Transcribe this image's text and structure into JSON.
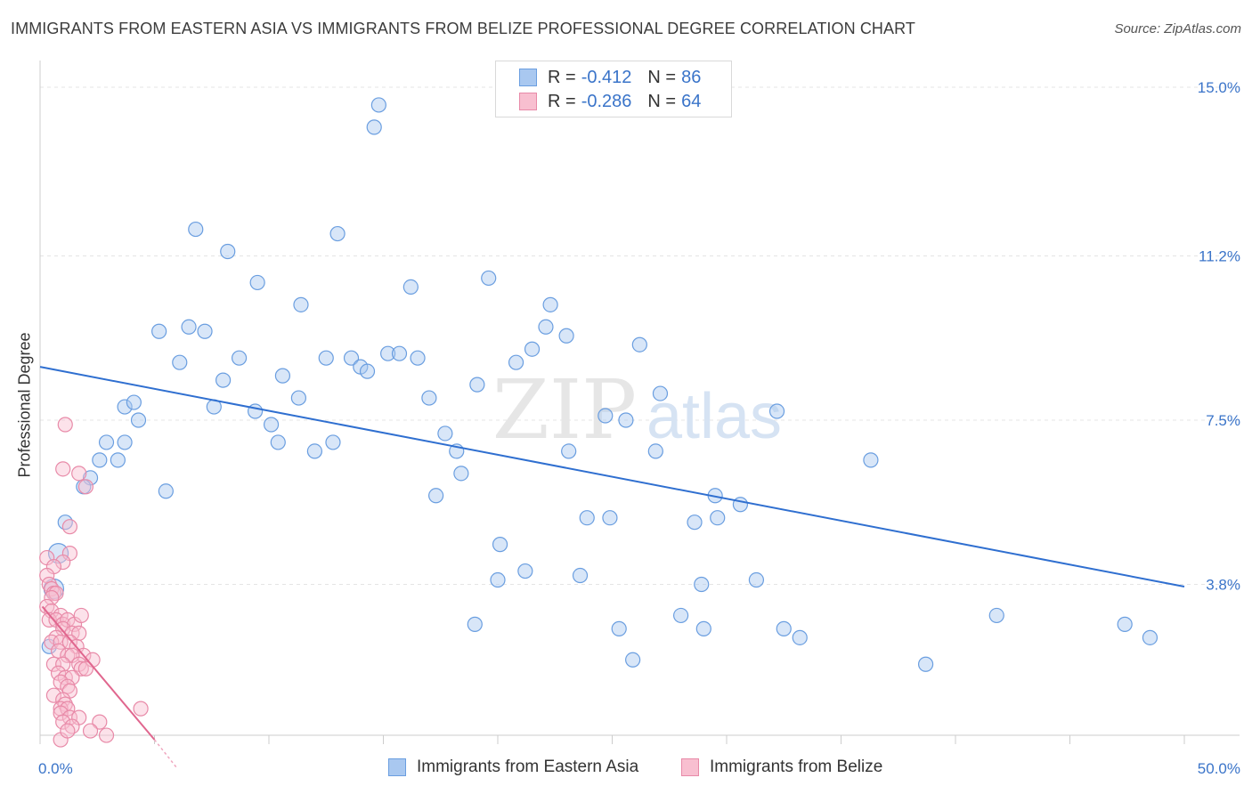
{
  "title": "IMMIGRANTS FROM EASTERN ASIA VS IMMIGRANTS FROM BELIZE PROFESSIONAL DEGREE CORRELATION CHART",
  "source": "Source: ZipAtlas.com",
  "watermark": {
    "zip": "ZIP",
    "atlas": "atlas"
  },
  "legend_top": {
    "rows": [
      {
        "r_label": "R =",
        "r_value": "-0.412",
        "n_label": "N =",
        "n_value": "86",
        "color": "#a9c8f0",
        "border": "#6a9ee0"
      },
      {
        "r_label": "R =",
        "r_value": "-0.286",
        "n_label": "N =",
        "n_value": "64",
        "color": "#f8bfd0",
        "border": "#e88aa8"
      }
    ]
  },
  "legend_bottom": {
    "items": [
      {
        "label": "Immigrants from Eastern Asia",
        "color": "#a9c8f0",
        "border": "#6a9ee0"
      },
      {
        "label": "Immigrants from Belize",
        "color": "#f8bfd0",
        "border": "#e88aa8"
      }
    ]
  },
  "chart_data": {
    "type": "scatter",
    "title": "IMMIGRANTS FROM EASTERN ASIA VS IMMIGRANTS FROM BELIZE PROFESSIONAL DEGREE CORRELATION CHART",
    "xlabel": "",
    "ylabel": "Professional Degree",
    "xlim": [
      0,
      50
    ],
    "ylim": [
      0,
      15
    ],
    "x_tick_labels": [
      "0.0%",
      "50.0%"
    ],
    "y_ticks": [
      3.8,
      7.5,
      11.2,
      15.0
    ],
    "y_tick_labels": [
      "3.8%",
      "7.5%",
      "11.2%",
      "15.0%"
    ],
    "grid": true,
    "legend_position": "top-center",
    "series": [
      {
        "name": "Immigrants from Eastern Asia",
        "color": "#6a9ee0",
        "fill": "#a9c8f0",
        "trend": {
          "x": [
            0,
            50
          ],
          "y": [
            8.7,
            3.75
          ],
          "color": "#2f6fd0"
        },
        "points": [
          [
            14.8,
            14.6
          ],
          [
            14.6,
            14.1
          ],
          [
            6.8,
            11.8
          ],
          [
            8.2,
            11.3
          ],
          [
            13.0,
            11.7
          ],
          [
            9.5,
            10.6
          ],
          [
            11.4,
            10.1
          ],
          [
            16.2,
            10.5
          ],
          [
            19.6,
            10.7
          ],
          [
            22.3,
            10.1
          ],
          [
            5.2,
            9.5
          ],
          [
            6.5,
            9.6
          ],
          [
            7.2,
            9.5
          ],
          [
            22.1,
            9.6
          ],
          [
            23.0,
            9.4
          ],
          [
            8.7,
            8.9
          ],
          [
            6.1,
            8.8
          ],
          [
            12.5,
            8.9
          ],
          [
            13.6,
            8.9
          ],
          [
            15.2,
            9.0
          ],
          [
            15.7,
            9.0
          ],
          [
            16.5,
            8.9
          ],
          [
            14.0,
            8.7
          ],
          [
            14.3,
            8.6
          ],
          [
            20.8,
            8.8
          ],
          [
            21.5,
            9.1
          ],
          [
            26.2,
            9.2
          ],
          [
            10.6,
            8.5
          ],
          [
            8.0,
            8.4
          ],
          [
            19.1,
            8.3
          ],
          [
            27.1,
            8.1
          ],
          [
            3.7,
            7.8
          ],
          [
            4.1,
            7.9
          ],
          [
            7.6,
            7.8
          ],
          [
            9.4,
            7.7
          ],
          [
            11.3,
            8.0
          ],
          [
            17.0,
            8.0
          ],
          [
            4.3,
            7.5
          ],
          [
            10.1,
            7.4
          ],
          [
            2.9,
            7.0
          ],
          [
            3.7,
            7.0
          ],
          [
            10.4,
            7.0
          ],
          [
            12.8,
            7.0
          ],
          [
            12.0,
            6.8
          ],
          [
            17.7,
            7.2
          ],
          [
            18.2,
            6.8
          ],
          [
            23.1,
            6.8
          ],
          [
            24.7,
            7.6
          ],
          [
            25.6,
            7.5
          ],
          [
            26.9,
            6.8
          ],
          [
            32.2,
            7.7
          ],
          [
            36.3,
            6.6
          ],
          [
            2.6,
            6.6
          ],
          [
            3.4,
            6.6
          ],
          [
            2.2,
            6.2
          ],
          [
            18.4,
            6.3
          ],
          [
            1.9,
            6.0
          ],
          [
            5.5,
            5.9
          ],
          [
            17.3,
            5.8
          ],
          [
            29.5,
            5.8
          ],
          [
            30.6,
            5.6
          ],
          [
            23.9,
            5.3
          ],
          [
            24.9,
            5.3
          ],
          [
            28.6,
            5.2
          ],
          [
            29.6,
            5.3
          ],
          [
            1.1,
            5.2
          ],
          [
            20.1,
            4.7
          ],
          [
            0.8,
            4.5
          ],
          [
            21.2,
            4.1
          ],
          [
            20.0,
            3.9
          ],
          [
            23.6,
            4.0
          ],
          [
            28.9,
            3.8
          ],
          [
            31.3,
            3.9
          ],
          [
            0.6,
            3.7
          ],
          [
            28.0,
            3.1
          ],
          [
            41.8,
            3.1
          ],
          [
            19.0,
            2.9
          ],
          [
            25.3,
            2.8
          ],
          [
            29.0,
            2.8
          ],
          [
            32.5,
            2.8
          ],
          [
            33.2,
            2.6
          ],
          [
            47.4,
            2.9
          ],
          [
            48.5,
            2.6
          ],
          [
            0.4,
            2.4
          ],
          [
            25.9,
            2.1
          ],
          [
            38.7,
            2.0
          ]
        ]
      },
      {
        "name": "Immigrants from Belize",
        "color": "#e88aa8",
        "fill": "#f8bfd0",
        "trend": {
          "x": [
            0.1,
            5.0
          ],
          "y": [
            3.3,
            0.3
          ],
          "color": "#e0668e"
        },
        "trend_dashed": {
          "x": [
            5.0,
            6.0
          ],
          "y": [
            0.3,
            -0.35
          ]
        },
        "points": [
          [
            1.1,
            7.4
          ],
          [
            1.0,
            6.4
          ],
          [
            1.7,
            6.3
          ],
          [
            2.0,
            6.0
          ],
          [
            1.3,
            5.1
          ],
          [
            1.3,
            4.5
          ],
          [
            0.3,
            4.4
          ],
          [
            1.0,
            4.3
          ],
          [
            0.6,
            4.2
          ],
          [
            0.3,
            4.0
          ],
          [
            0.4,
            3.8
          ],
          [
            0.5,
            3.7
          ],
          [
            0.6,
            3.6
          ],
          [
            0.7,
            3.6
          ],
          [
            0.5,
            3.5
          ],
          [
            0.3,
            3.3
          ],
          [
            0.5,
            3.2
          ],
          [
            0.9,
            3.1
          ],
          [
            0.4,
            3.0
          ],
          [
            0.7,
            3.0
          ],
          [
            1.0,
            2.9
          ],
          [
            1.2,
            3.0
          ],
          [
            1.5,
            2.9
          ],
          [
            1.8,
            3.1
          ],
          [
            1.0,
            2.8
          ],
          [
            0.7,
            2.6
          ],
          [
            1.4,
            2.7
          ],
          [
            1.7,
            2.7
          ],
          [
            0.5,
            2.5
          ],
          [
            0.9,
            2.5
          ],
          [
            1.3,
            2.5
          ],
          [
            1.6,
            2.4
          ],
          [
            1.9,
            2.2
          ],
          [
            0.8,
            2.3
          ],
          [
            1.2,
            2.2
          ],
          [
            1.4,
            2.2
          ],
          [
            2.3,
            2.1
          ],
          [
            1.7,
            2.0
          ],
          [
            0.6,
            2.0
          ],
          [
            1.0,
            2.0
          ],
          [
            1.8,
            1.9
          ],
          [
            2.0,
            1.9
          ],
          [
            0.8,
            1.8
          ],
          [
            1.1,
            1.7
          ],
          [
            1.4,
            1.7
          ],
          [
            0.9,
            1.6
          ],
          [
            1.2,
            1.5
          ],
          [
            1.3,
            1.4
          ],
          [
            0.6,
            1.3
          ],
          [
            1.0,
            1.2
          ],
          [
            1.1,
            1.1
          ],
          [
            0.9,
            1.0
          ],
          [
            1.2,
            1.0
          ],
          [
            4.4,
            1.0
          ],
          [
            0.9,
            0.9
          ],
          [
            1.3,
            0.8
          ],
          [
            1.7,
            0.8
          ],
          [
            2.6,
            0.7
          ],
          [
            1.0,
            0.7
          ],
          [
            1.4,
            0.6
          ],
          [
            2.2,
            0.5
          ],
          [
            2.9,
            0.4
          ],
          [
            0.9,
            0.3
          ],
          [
            1.2,
            0.5
          ]
        ]
      }
    ]
  }
}
